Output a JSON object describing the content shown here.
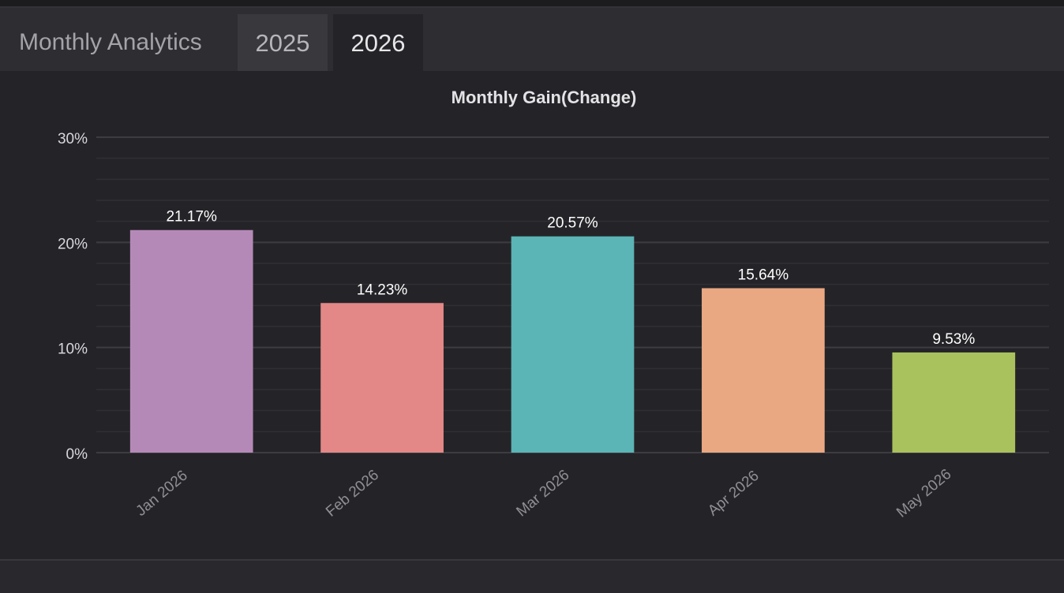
{
  "header": {
    "title": "Monthly Analytics",
    "tabs": [
      {
        "label": "2025",
        "active": false
      },
      {
        "label": "2026",
        "active": true
      }
    ]
  },
  "chart_data": {
    "type": "bar",
    "title": "Monthly Gain(Change)",
    "xlabel": "",
    "ylabel": "",
    "categories": [
      "Jan 2026",
      "Feb 2026",
      "Mar 2026",
      "Apr 2026",
      "May 2026"
    ],
    "values": [
      21.17,
      14.23,
      20.57,
      15.64,
      9.53
    ],
    "data_labels": [
      "21.17%",
      "14.23%",
      "20.57%",
      "15.64%",
      "9.53%"
    ],
    "colors": [
      "#b589b7",
      "#e38887",
      "#5bb4b5",
      "#eaa882",
      "#a9c25d"
    ],
    "ylim": [
      0,
      30
    ],
    "yticks": [
      0,
      10,
      20,
      30
    ],
    "ytick_labels": [
      "0%",
      "10%",
      "20%",
      "30%"
    ],
    "grid": true,
    "legend": "none"
  }
}
